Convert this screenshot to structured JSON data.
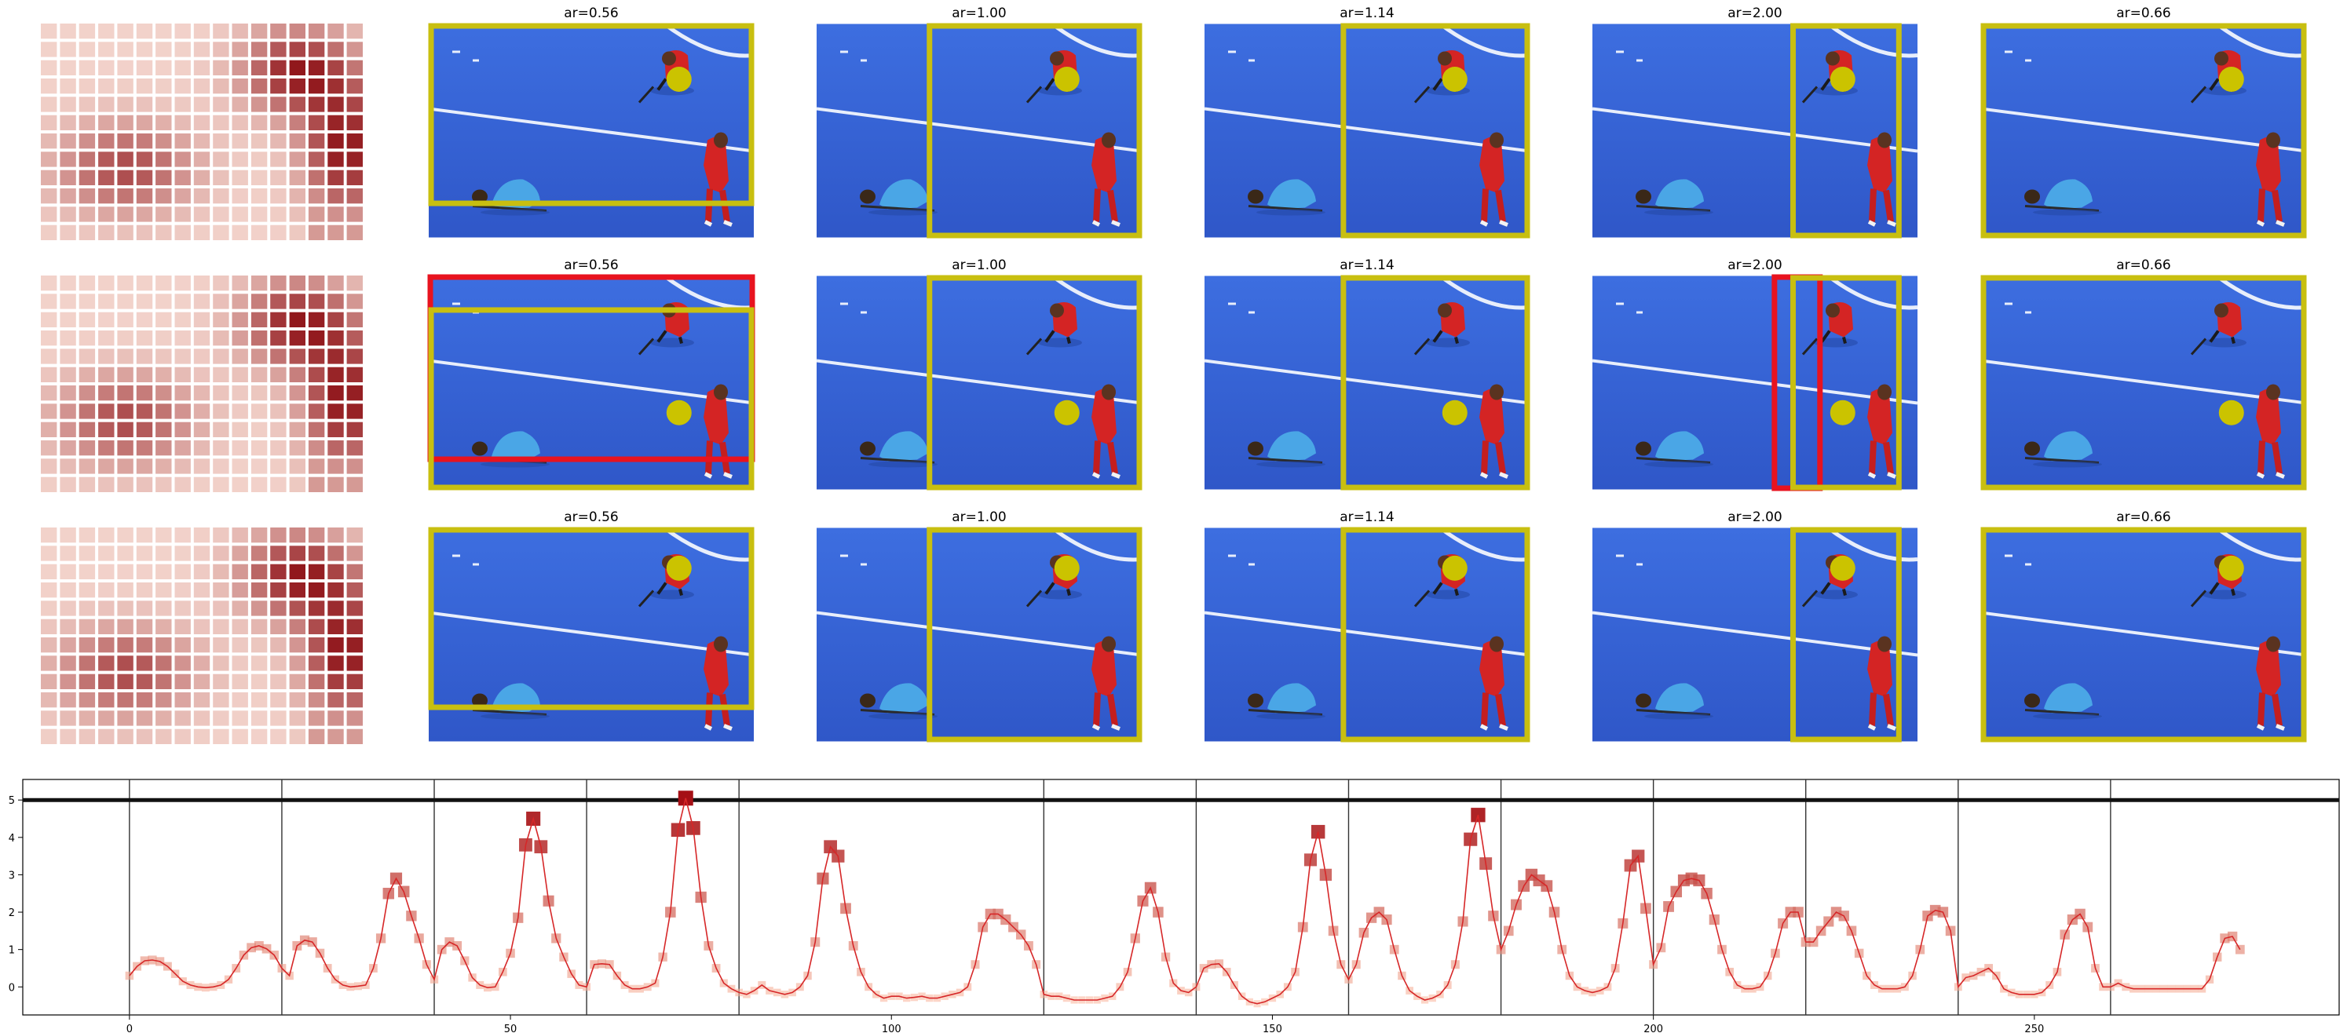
{
  "figure": {
    "row_titles": [
      [
        "ar=0.56",
        "ar=1.00",
        "ar=1.14",
        "ar=2.00",
        "ar=0.66"
      ],
      [
        "ar=0.56",
        "ar=1.00",
        "ar=1.14",
        "ar=2.00",
        "ar=0.66"
      ],
      [
        "ar=0.56",
        "ar=1.00",
        "ar=1.14",
        "ar=2.00",
        "ar=0.66"
      ]
    ],
    "colors": {
      "crop_box": "#c8bf10",
      "alt_box": "#e8131f",
      "focus_dot": "#cbc300",
      "pitch": "#3a64d8",
      "heat_low": "#fbe3da",
      "heat_high": "#8e1116",
      "line": "#d62728",
      "marker_low": "#fcbba1",
      "marker_high": "#a50f15"
    }
  },
  "chart_data": {
    "type": "line",
    "x_ticks": [
      0,
      50,
      100,
      150,
      200,
      250
    ],
    "y_ticks": [
      0,
      1,
      2,
      3,
      4,
      5
    ],
    "xlim": [
      -14,
      290
    ],
    "ylim": [
      -0.75,
      5.55
    ],
    "threshold": 5.0,
    "separators": [
      0,
      20,
      40,
      60,
      80,
      120,
      140,
      160,
      180,
      200,
      220,
      240,
      260
    ],
    "grid": false,
    "series": [
      {
        "points": [
          [
            0,
            0.3
          ],
          [
            1,
            0.55
          ],
          [
            2,
            0.7
          ],
          [
            3,
            0.72
          ],
          [
            4,
            0.68
          ],
          [
            5,
            0.55
          ],
          [
            6,
            0.35
          ],
          [
            7,
            0.15
          ],
          [
            8,
            0.05
          ],
          [
            9,
            0.0
          ],
          [
            10,
            -0.02
          ],
          [
            11,
            0.0
          ],
          [
            12,
            0.05
          ],
          [
            13,
            0.2
          ],
          [
            14,
            0.5
          ],
          [
            15,
            0.85
          ],
          [
            16,
            1.05
          ],
          [
            17,
            1.1
          ],
          [
            18,
            1.02
          ],
          [
            19,
            0.85
          ],
          [
            20,
            0.5
          ],
          [
            21,
            0.3
          ],
          [
            22,
            1.1
          ],
          [
            23,
            1.25
          ],
          [
            24,
            1.2
          ],
          [
            25,
            0.9
          ],
          [
            26,
            0.5
          ],
          [
            27,
            0.2
          ],
          [
            28,
            0.05
          ],
          [
            29,
            0.0
          ],
          [
            30,
            0.02
          ],
          [
            31,
            0.05
          ],
          [
            32,
            0.5
          ],
          [
            33,
            1.3
          ],
          [
            34,
            2.5
          ],
          [
            35,
            2.9
          ],
          [
            36,
            2.55
          ],
          [
            37,
            1.9
          ],
          [
            38,
            1.3
          ],
          [
            39,
            0.6
          ],
          [
            40,
            0.2
          ],
          [
            41,
            1.0
          ],
          [
            42,
            1.2
          ],
          [
            43,
            1.1
          ],
          [
            44,
            0.7
          ],
          [
            45,
            0.25
          ],
          [
            46,
            0.05
          ],
          [
            47,
            -0.02
          ],
          [
            48,
            0.0
          ],
          [
            49,
            0.4
          ],
          [
            50,
            0.9
          ],
          [
            51,
            1.85
          ],
          [
            52,
            3.8
          ],
          [
            53,
            4.5
          ],
          [
            54,
            3.75
          ],
          [
            55,
            2.3
          ],
          [
            56,
            1.3
          ],
          [
            57,
            0.8
          ],
          [
            58,
            0.35
          ],
          [
            59,
            0.05
          ],
          [
            60,
            0.0
          ],
          [
            61,
            0.6
          ],
          [
            62,
            0.62
          ],
          [
            63,
            0.6
          ],
          [
            64,
            0.3
          ],
          [
            65,
            0.05
          ],
          [
            66,
            -0.05
          ],
          [
            67,
            -0.05
          ],
          [
            68,
            0.0
          ],
          [
            69,
            0.1
          ],
          [
            70,
            0.8
          ],
          [
            71,
            2.0
          ],
          [
            72,
            4.2
          ],
          [
            73,
            5.05
          ],
          [
            74,
            4.25
          ],
          [
            75,
            2.4
          ],
          [
            76,
            1.1
          ],
          [
            77,
            0.5
          ],
          [
            78,
            0.1
          ],
          [
            79,
            -0.05
          ],
          [
            80,
            -0.15
          ],
          [
            81,
            -0.2
          ],
          [
            82,
            -0.1
          ],
          [
            83,
            0.05
          ],
          [
            84,
            -0.1
          ],
          [
            85,
            -0.15
          ],
          [
            86,
            -0.2
          ],
          [
            87,
            -0.15
          ],
          [
            88,
            0.0
          ],
          [
            89,
            0.3
          ],
          [
            90,
            1.2
          ],
          [
            91,
            2.9
          ],
          [
            92,
            3.75
          ],
          [
            93,
            3.5
          ],
          [
            94,
            2.1
          ],
          [
            95,
            1.1
          ],
          [
            96,
            0.4
          ],
          [
            97,
            0.0
          ],
          [
            98,
            -0.2
          ],
          [
            99,
            -0.3
          ],
          [
            100,
            -0.25
          ],
          [
            101,
            -0.25
          ],
          [
            102,
            -0.3
          ],
          [
            103,
            -0.28
          ],
          [
            104,
            -0.25
          ],
          [
            105,
            -0.3
          ],
          [
            106,
            -0.3
          ],
          [
            107,
            -0.25
          ],
          [
            108,
            -0.2
          ],
          [
            109,
            -0.15
          ],
          [
            110,
            0.0
          ],
          [
            111,
            0.6
          ],
          [
            112,
            1.6
          ],
          [
            113,
            1.95
          ],
          [
            114,
            1.95
          ],
          [
            115,
            1.8
          ],
          [
            116,
            1.6
          ],
          [
            117,
            1.4
          ],
          [
            118,
            1.1
          ],
          [
            119,
            0.6
          ],
          [
            120,
            -0.2
          ],
          [
            121,
            -0.25
          ],
          [
            122,
            -0.25
          ],
          [
            123,
            -0.3
          ],
          [
            124,
            -0.35
          ],
          [
            125,
            -0.35
          ],
          [
            126,
            -0.35
          ],
          [
            127,
            -0.35
          ],
          [
            128,
            -0.3
          ],
          [
            129,
            -0.25
          ],
          [
            130,
            0.0
          ],
          [
            131,
            0.4
          ],
          [
            132,
            1.3
          ],
          [
            133,
            2.3
          ],
          [
            134,
            2.65
          ],
          [
            135,
            2.0
          ],
          [
            136,
            0.8
          ],
          [
            137,
            0.1
          ],
          [
            138,
            -0.1
          ],
          [
            139,
            -0.15
          ],
          [
            140,
            0.0
          ],
          [
            141,
            0.5
          ],
          [
            142,
            0.6
          ],
          [
            143,
            0.62
          ],
          [
            144,
            0.4
          ],
          [
            145,
            0.05
          ],
          [
            146,
            -0.25
          ],
          [
            147,
            -0.4
          ],
          [
            148,
            -0.45
          ],
          [
            149,
            -0.4
          ],
          [
            150,
            -0.3
          ],
          [
            151,
            -0.2
          ],
          [
            152,
            0.0
          ],
          [
            153,
            0.4
          ],
          [
            154,
            1.6
          ],
          [
            155,
            3.4
          ],
          [
            156,
            4.15
          ],
          [
            157,
            3.0
          ],
          [
            158,
            1.5
          ],
          [
            159,
            0.6
          ],
          [
            160,
            0.2
          ],
          [
            161,
            0.6
          ],
          [
            162,
            1.45
          ],
          [
            163,
            1.85
          ],
          [
            164,
            2.0
          ],
          [
            165,
            1.8
          ],
          [
            166,
            1.0
          ],
          [
            167,
            0.3
          ],
          [
            168,
            -0.1
          ],
          [
            169,
            -0.25
          ],
          [
            170,
            -0.35
          ],
          [
            171,
            -0.3
          ],
          [
            172,
            -0.2
          ],
          [
            173,
            0.05
          ],
          [
            174,
            0.6
          ],
          [
            175,
            1.75
          ],
          [
            176,
            3.95
          ],
          [
            177,
            4.6
          ],
          [
            178,
            3.3
          ],
          [
            179,
            1.9
          ],
          [
            180,
            1.0
          ],
          [
            181,
            1.5
          ],
          [
            182,
            2.2
          ],
          [
            183,
            2.7
          ],
          [
            184,
            3.0
          ],
          [
            185,
            2.85
          ],
          [
            186,
            2.7
          ],
          [
            187,
            2.0
          ],
          [
            188,
            1.0
          ],
          [
            189,
            0.3
          ],
          [
            190,
            0.0
          ],
          [
            191,
            -0.1
          ],
          [
            192,
            -0.15
          ],
          [
            193,
            -0.1
          ],
          [
            194,
            0.0
          ],
          [
            195,
            0.5
          ],
          [
            196,
            1.7
          ],
          [
            197,
            3.25
          ],
          [
            198,
            3.5
          ],
          [
            199,
            2.1
          ],
          [
            200,
            0.6
          ],
          [
            201,
            1.05
          ],
          [
            202,
            2.15
          ],
          [
            203,
            2.55
          ],
          [
            204,
            2.85
          ],
          [
            205,
            2.9
          ],
          [
            206,
            2.85
          ],
          [
            207,
            2.5
          ],
          [
            208,
            1.8
          ],
          [
            209,
            1.0
          ],
          [
            210,
            0.4
          ],
          [
            211,
            0.05
          ],
          [
            212,
            -0.05
          ],
          [
            213,
            -0.05
          ],
          [
            214,
            0.0
          ],
          [
            215,
            0.3
          ],
          [
            216,
            0.9
          ],
          [
            217,
            1.7
          ],
          [
            218,
            2.0
          ],
          [
            219,
            2.0
          ],
          [
            220,
            1.2
          ],
          [
            221,
            1.2
          ],
          [
            222,
            1.5
          ],
          [
            223,
            1.75
          ],
          [
            224,
            2.0
          ],
          [
            225,
            1.9
          ],
          [
            226,
            1.5
          ],
          [
            227,
            0.9
          ],
          [
            228,
            0.3
          ],
          [
            229,
            0.05
          ],
          [
            230,
            -0.05
          ],
          [
            231,
            -0.05
          ],
          [
            232,
            -0.05
          ],
          [
            233,
            0.0
          ],
          [
            234,
            0.3
          ],
          [
            235,
            1.0
          ],
          [
            236,
            1.9
          ],
          [
            237,
            2.05
          ],
          [
            238,
            2.0
          ],
          [
            239,
            1.5
          ],
          [
            240,
            0.0
          ],
          [
            241,
            0.25
          ],
          [
            242,
            0.3
          ],
          [
            243,
            0.4
          ],
          [
            244,
            0.5
          ],
          [
            245,
            0.3
          ],
          [
            246,
            -0.05
          ],
          [
            247,
            -0.15
          ],
          [
            248,
            -0.2
          ],
          [
            249,
            -0.2
          ],
          [
            250,
            -0.2
          ],
          [
            251,
            -0.15
          ],
          [
            252,
            0.05
          ],
          [
            253,
            0.4
          ],
          [
            254,
            1.4
          ],
          [
            255,
            1.8
          ],
          [
            256,
            1.95
          ],
          [
            257,
            1.6
          ],
          [
            258,
            0.5
          ],
          [
            259,
            0.0
          ],
          [
            260,
            0.0
          ],
          [
            261,
            0.1
          ],
          [
            262,
            0.0
          ],
          [
            263,
            -0.05
          ],
          [
            264,
            -0.05
          ],
          [
            265,
            -0.05
          ],
          [
            266,
            -0.05
          ],
          [
            267,
            -0.05
          ],
          [
            268,
            -0.05
          ],
          [
            269,
            -0.05
          ],
          [
            270,
            -0.05
          ],
          [
            271,
            -0.05
          ],
          [
            272,
            -0.05
          ],
          [
            273,
            0.2
          ],
          [
            274,
            0.8
          ],
          [
            275,
            1.3
          ],
          [
            276,
            1.35
          ],
          [
            277,
            1.0
          ]
        ]
      }
    ]
  }
}
